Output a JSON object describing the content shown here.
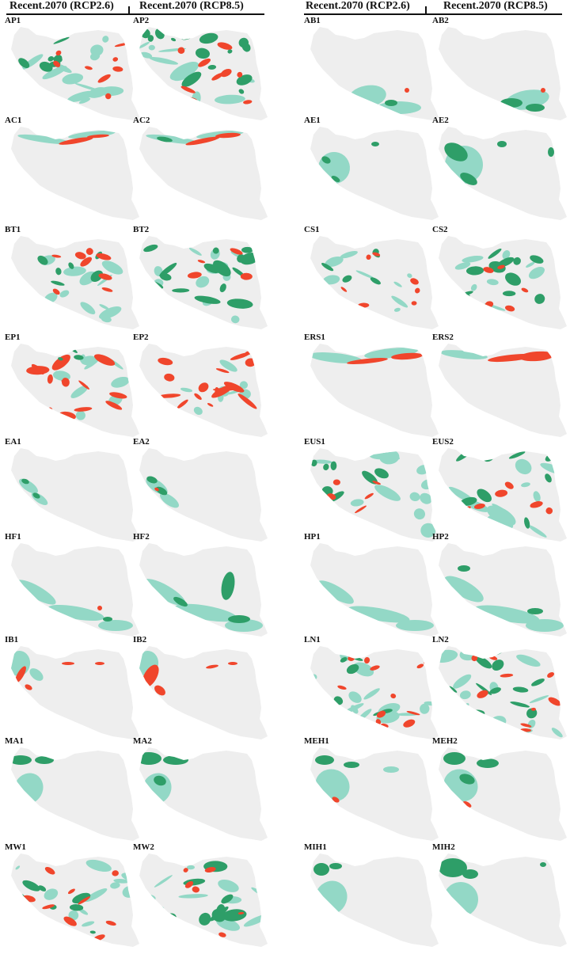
{
  "headers": {
    "left_col1": "Recent.2070 (RCP2.6)",
    "left_col2": "Recent.2070 (RCP8.5)",
    "right_col1": "Recent.2070 (RCP2.6)",
    "right_col2": "Recent.2070 (RCP8.5)"
  },
  "colors": {
    "background_region": "#eeeeee",
    "stable": "#93d8c6",
    "gain": "#2e9e68",
    "loss": "#f0462c"
  },
  "left_panels": [
    [
      "AP1",
      "AP2"
    ],
    [
      "AC1",
      "AC2"
    ],
    [
      "BT1",
      "BT2"
    ],
    [
      "EP1",
      "EP2"
    ],
    [
      "EA1",
      "EA2"
    ],
    [
      "HF1",
      "HF2"
    ],
    [
      "IB1",
      "IB2"
    ],
    [
      "MA1",
      "MA2"
    ],
    [
      "MW1",
      "MW2"
    ]
  ],
  "right_panels": [
    [
      "AB1",
      "AB2"
    ],
    [
      "AE1",
      "AE2"
    ],
    [
      "CS1",
      "CS2"
    ],
    [
      "ERS1",
      "ERS2"
    ],
    [
      "EUS1",
      "EUS2"
    ],
    [
      "HP1",
      "HP2"
    ],
    [
      "LN1",
      "LN2"
    ],
    [
      "MEH1",
      "MEH2"
    ],
    [
      "MIH1",
      "MIH2"
    ]
  ]
}
